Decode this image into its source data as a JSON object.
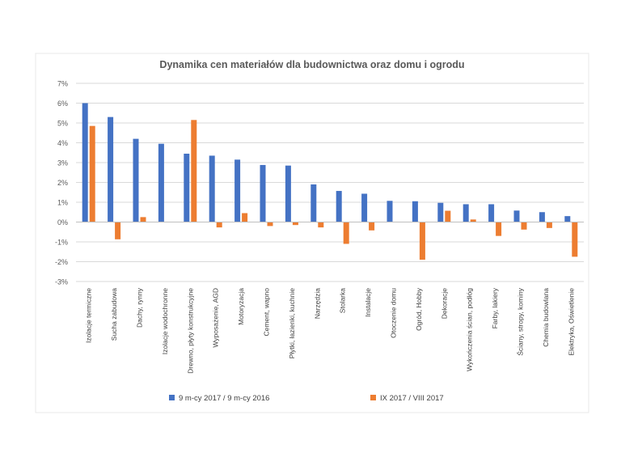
{
  "chart_data": {
    "type": "bar",
    "title": "Dynamika cen materiałów dla budownictwa oraz domu i ogrodu",
    "xlabel": "",
    "ylabel": "",
    "ylim": [
      -3,
      7
    ],
    "yticks": [
      -3,
      -2,
      -1,
      0,
      1,
      2,
      3,
      4,
      5,
      6,
      7
    ],
    "ytick_labels": [
      "-3%",
      "-2%",
      "-1%",
      "0%",
      "1%",
      "2%",
      "3%",
      "4%",
      "5%",
      "6%",
      "7%"
    ],
    "grid": true,
    "legend_position": "bottom",
    "categories": [
      "Izolacje termiczne",
      "Sucha zabudowa",
      "Dachy, rynny",
      "Izolacje wodochronne",
      "Drewno, płyty konstrukcyjne",
      "Wyposażenie, AGD",
      "Motoryzacja",
      "Cement, wapno",
      "Płytki, łazienki, kuchnie",
      "Narzędzia",
      "Stolarka",
      "Instalacje",
      "Otoczenie domu",
      "Ogród, Hobby",
      "Dekoracje",
      "Wykończenia ścian, podłóg",
      "Farby, lakiery",
      "Ściany, stropy, kominy",
      "Chemia budowlana",
      "Elektryka, Oświetlenie"
    ],
    "series": [
      {
        "name": "9 m-cy 2017 / 9 m-cy 2016",
        "color": "#4472C4",
        "values": [
          6.0,
          5.3,
          4.2,
          3.95,
          3.45,
          3.35,
          3.15,
          2.88,
          2.85,
          1.9,
          1.57,
          1.43,
          1.07,
          1.05,
          0.97,
          0.9,
          0.9,
          0.58,
          0.5,
          0.3
        ]
      },
      {
        "name": "IX 2017 / VIII 2017",
        "color": "#ED7D31",
        "values": [
          4.85,
          -0.87,
          0.25,
          0.0,
          5.15,
          -0.27,
          0.45,
          -0.2,
          -0.15,
          -0.27,
          -1.1,
          -0.42,
          0.0,
          -1.9,
          0.57,
          0.13,
          -0.7,
          -0.38,
          -0.3,
          -1.75
        ]
      }
    ]
  }
}
